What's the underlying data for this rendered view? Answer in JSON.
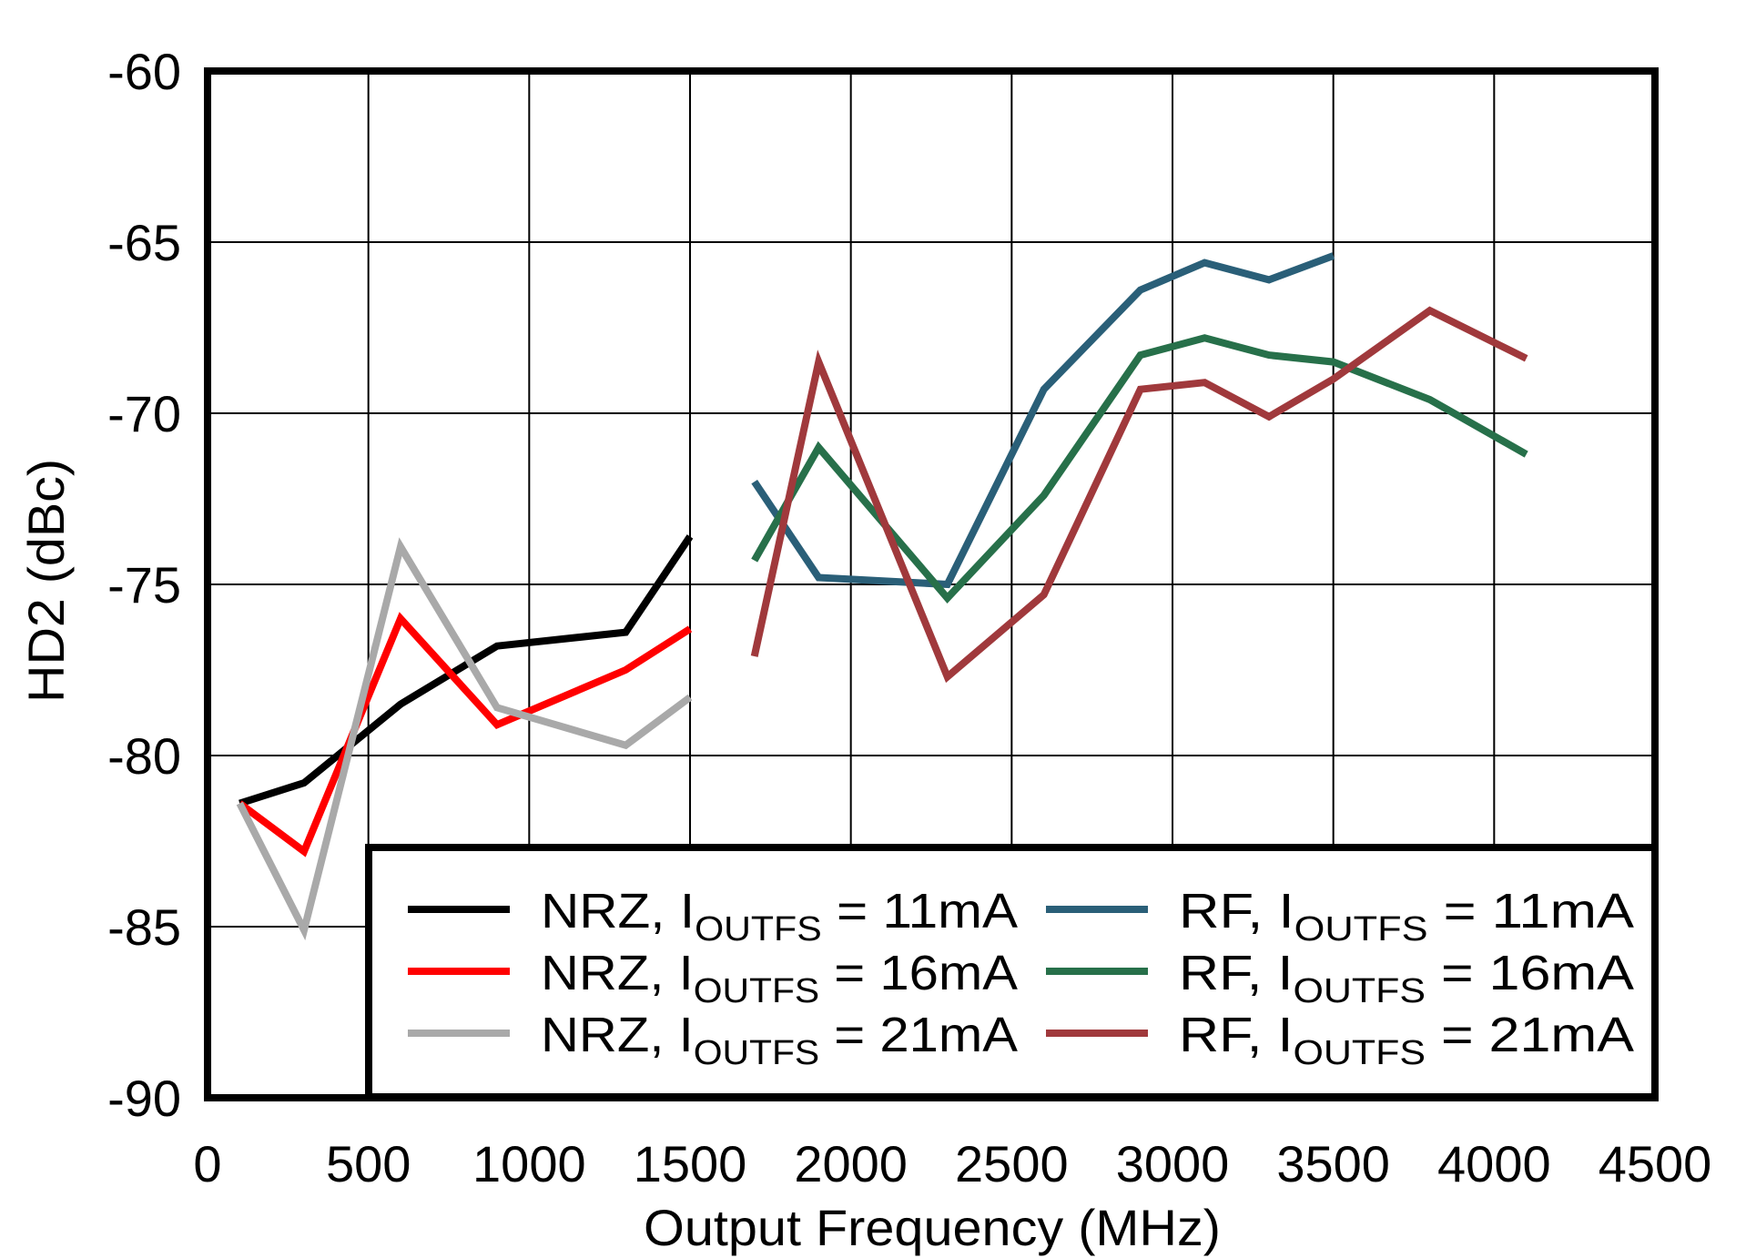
{
  "chart_data": {
    "type": "line",
    "title": "",
    "xlabel": "Output Frequency (MHz)",
    "ylabel": "HD2 (dBc)",
    "xlim": [
      0,
      4500
    ],
    "ylim": [
      -90,
      -60
    ],
    "xticks": [
      0,
      500,
      1000,
      1500,
      2000,
      2500,
      3000,
      3500,
      4000,
      4500
    ],
    "yticks": [
      -60,
      -65,
      -70,
      -75,
      -80,
      -85,
      -90
    ],
    "grid": true,
    "legend_position": "lower right (inside plot, two columns)",
    "series": [
      {
        "name": "NRZ, IOUTFS = 11mA",
        "label_main": "NRZ, I",
        "label_sub": "OUTFS",
        "label_tail": " = 11mA",
        "color": "#000000",
        "x": [
          100,
          300,
          600,
          900,
          1300,
          1500
        ],
        "values": [
          -81.4,
          -80.8,
          -78.5,
          -76.8,
          -76.4,
          -73.6
        ]
      },
      {
        "name": "NRZ, IOUTFS = 16mA",
        "label_main": "NRZ, I",
        "label_sub": "OUTFS",
        "label_tail": " = 16mA",
        "color": "#FF0000",
        "x": [
          100,
          300,
          600,
          900,
          1300,
          1500
        ],
        "values": [
          -81.4,
          -82.8,
          -76.0,
          -79.1,
          -77.5,
          -76.3
        ]
      },
      {
        "name": "NRZ, IOUTFS = 21mA",
        "label_main": "NRZ, I",
        "label_sub": "OUTFS",
        "label_tail": " = 21mA",
        "color": "#A9A9A9",
        "x": [
          100,
          300,
          600,
          900,
          1300,
          1500
        ],
        "values": [
          -81.4,
          -85.1,
          -73.9,
          -78.6,
          -79.7,
          -78.3
        ]
      },
      {
        "name": "RF, IOUTFS = 11mA",
        "label_main": "RF, I",
        "label_sub": "OUTFS",
        "label_tail": " = 11mA",
        "color": "#2A5F78",
        "x": [
          1700,
          1900,
          2300,
          2600,
          2900,
          3100,
          3300,
          3500
        ],
        "values": [
          -72.0,
          -74.8,
          -75.0,
          -69.3,
          -66.4,
          -65.6,
          -66.1,
          -65.4
        ]
      },
      {
        "name": "RF, IOUTFS = 16mA",
        "label_main": "RF, I",
        "label_sub": "OUTFS",
        "label_tail": " = 16mA",
        "color": "#27704A",
        "x": [
          1700,
          1900,
          2300,
          2600,
          2900,
          3100,
          3300,
          3500,
          3800,
          4100
        ],
        "values": [
          -74.3,
          -71.0,
          -75.4,
          -72.4,
          -68.3,
          -67.8,
          -68.3,
          -68.5,
          -69.6,
          -71.2
        ]
      },
      {
        "name": "RF, IOUTFS = 21mA",
        "label_main": "RF, I",
        "label_sub": "OUTFS",
        "label_tail": " = 21mA",
        "color": "#A0393C",
        "x": [
          1700,
          1900,
          2300,
          2600,
          2900,
          3100,
          3300,
          3500,
          3800,
          4100
        ],
        "values": [
          -77.1,
          -68.5,
          -77.7,
          -75.3,
          -69.3,
          -69.1,
          -70.1,
          -69.0,
          -67.0,
          -68.4
        ]
      }
    ]
  }
}
